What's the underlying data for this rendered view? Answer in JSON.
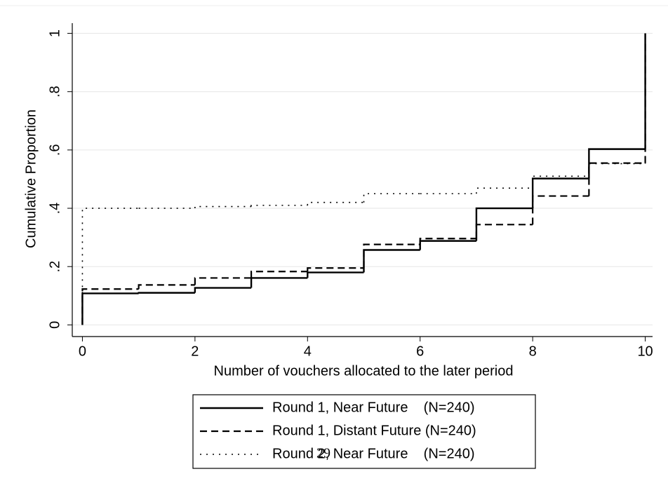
{
  "chart_data": {
    "type": "step",
    "x_label": "Number of vouchers allocated to the later period",
    "y_label": "Cumulative Proportion",
    "x": [
      0,
      1,
      2,
      3,
      4,
      5,
      6,
      7,
      8,
      9,
      10
    ],
    "series": [
      {
        "name": "Round 1, Near Future    (N=240)",
        "color": "#000000",
        "dash": "solid",
        "values": [
          0.108,
          0.11,
          0.127,
          0.161,
          0.18,
          0.257,
          0.288,
          0.4,
          0.502,
          0.603,
          1
        ]
      },
      {
        "name": "Round 1, Distant Future (N=240)",
        "color": "#000000",
        "dash": "dashed",
        "values": [
          0.123,
          0.137,
          0.161,
          0.183,
          0.195,
          0.276,
          0.296,
          0.344,
          0.442,
          0.555,
          1
        ]
      },
      {
        "name": "Round 2, Near Future    (N=240)",
        "color": "#000000",
        "dash": "dotted",
        "values": [
          0.4,
          0.4,
          0.406,
          0.41,
          0.42,
          0.45,
          0.45,
          0.469,
          0.51,
          0.553,
          1
        ]
      }
    ],
    "xlim": [
      -0.18,
      10.13
    ],
    "xticks": [
      0,
      2,
      4,
      6,
      8,
      10
    ],
    "ylim": [
      -0.04,
      1.035
    ],
    "yticks": [
      0,
      {
        "value": 0.2,
        "label": ".2"
      },
      {
        "value": 0.4,
        "label": ".4"
      },
      {
        "value": 0.6,
        "label": ".6"
      },
      {
        "value": 0.8,
        "label": ".8"
      },
      1
    ],
    "grid": true,
    "page_number": "29"
  }
}
